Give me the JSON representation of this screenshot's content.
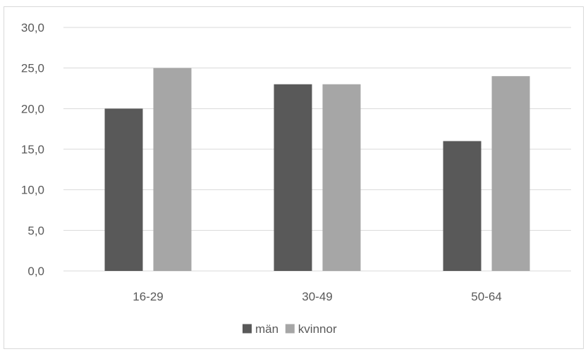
{
  "chart_data": {
    "type": "bar",
    "title": "",
    "xlabel": "",
    "ylabel": "",
    "categories": [
      "16-29",
      "30-49",
      "50-64"
    ],
    "series": [
      {
        "name": "män",
        "values": [
          20,
          23,
          16
        ],
        "color": "#595959"
      },
      {
        "name": "kvinnor",
        "values": [
          25,
          23,
          24
        ],
        "color": "#a6a6a6"
      }
    ],
    "ylim": [
      0,
      30
    ],
    "yticks": [
      0,
      5,
      10,
      15,
      20,
      25,
      30
    ],
    "ytick_labels": [
      "0,0",
      "5,0",
      "10,0",
      "15,0",
      "20,0",
      "25,0",
      "30,0"
    ],
    "grid": true,
    "gridline_color": "#d9d9d9",
    "legend_position": "bottom"
  }
}
